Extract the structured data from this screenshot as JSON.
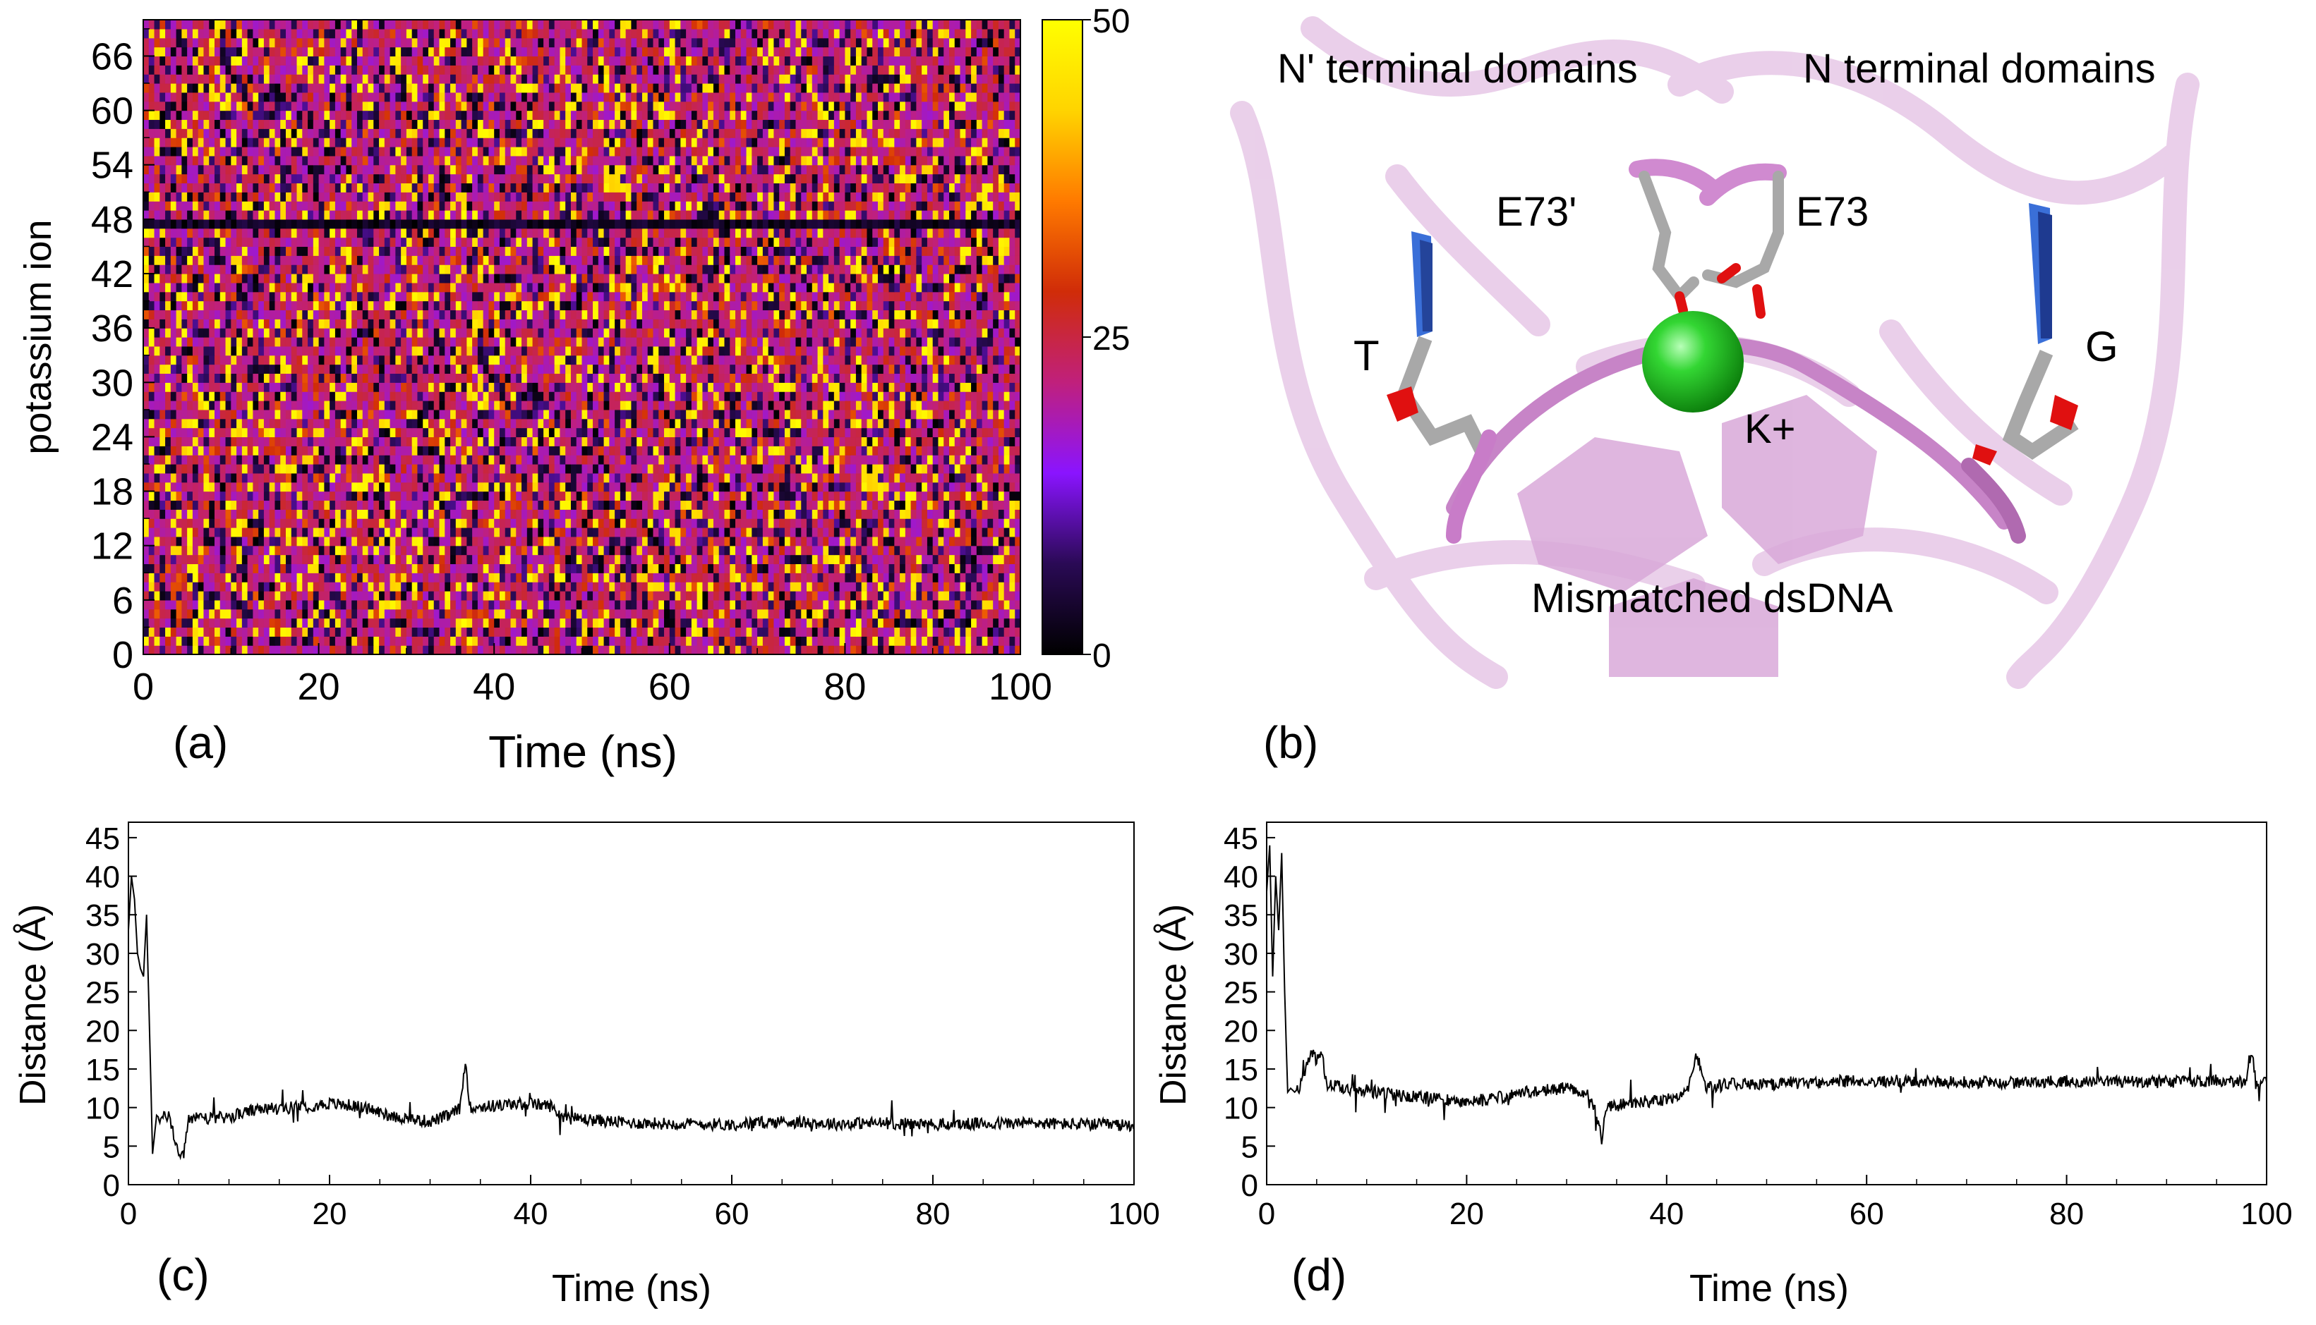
{
  "colors": {
    "scale": [
      "#000000",
      "#2a0a55",
      "#8a14ff",
      "#c0207c",
      "#d02c08",
      "#ff7a00",
      "#ffd400",
      "#ffff00"
    ],
    "line": "#000000",
    "protein": "#e8c9e8",
    "k_ion": "#22c522",
    "base_blue": "#2244aa",
    "oxygen": "#e01010",
    "carbon": "#9a9a9a"
  },
  "chart_data": [
    {
      "type": "heatmap",
      "panel": "(a)",
      "xlabel": "Time (ns)",
      "ylabel": "potassium ion",
      "xlim": [
        0,
        100
      ],
      "ylim": [
        0,
        70
      ],
      "xticks": [
        0,
        20,
        40,
        60,
        80,
        100
      ],
      "yticks": [
        0,
        6,
        12,
        18,
        24,
        30,
        36,
        42,
        48,
        54,
        60,
        66
      ],
      "colorbar": {
        "range": [
          0,
          50
        ],
        "ticks": [
          0,
          25,
          50
        ]
      },
      "rows": 70,
      "time_bins": 160,
      "dark_band_row": 47,
      "value_mix": {
        "purple": 0.55,
        "yellow": 0.14,
        "red": 0.1,
        "dark": 0.21
      }
    },
    {
      "type": "line",
      "panel": "(c)",
      "xlabel": "Time (ns)",
      "ylabel": "Distance (Å)",
      "xlim": [
        0,
        100
      ],
      "ylim": [
        0,
        47
      ],
      "xticks": [
        0,
        20,
        40,
        60,
        80,
        100
      ],
      "yticks": [
        0,
        5,
        10,
        15,
        20,
        25,
        30,
        35,
        40,
        45
      ],
      "series": [
        {
          "name": "distance",
          "x": [
            0,
            0.3,
            0.6,
            0.9,
            1.2,
            1.5,
            1.8,
            2.1,
            2.4,
            2.8,
            3.2,
            4,
            5,
            5.5,
            6,
            7,
            8,
            10,
            12,
            14,
            16,
            18,
            20,
            22,
            24,
            26,
            28,
            30,
            32,
            33,
            33.5,
            34,
            36,
            38,
            40,
            42,
            43,
            44,
            46,
            48,
            50,
            55,
            60,
            65,
            70,
            75,
            80,
            85,
            90,
            95,
            99,
            100
          ],
          "y": [
            33,
            40,
            37,
            30,
            28,
            27,
            35,
            20,
            4,
            9,
            8.5,
            9,
            4,
            3.8,
            8.5,
            9,
            8.5,
            8.8,
            9.5,
            9.8,
            10,
            10.2,
            10.5,
            10.3,
            9.8,
            9,
            8.5,
            8.2,
            9,
            10,
            16,
            10,
            10.2,
            10.4,
            10.5,
            10.2,
            9,
            8.6,
            8.4,
            8.2,
            8,
            7.9,
            7.8,
            8.2,
            7.9,
            8,
            7.8,
            7.9,
            8,
            7.8,
            7.7,
            7.8
          ]
        }
      ]
    },
    {
      "type": "line",
      "panel": "(d)",
      "xlabel": "Time (ns)",
      "ylabel": "Distance (Å)",
      "xlim": [
        0,
        100
      ],
      "ylim": [
        0,
        47
      ],
      "xticks": [
        0,
        20,
        40,
        60,
        80,
        100
      ],
      "yticks": [
        0,
        5,
        10,
        15,
        20,
        25,
        30,
        35,
        40,
        45
      ],
      "series": [
        {
          "name": "distance",
          "x": [
            0,
            0.3,
            0.6,
            0.9,
            1.2,
            1.5,
            1.8,
            2.1,
            2.4,
            2.8,
            3.5,
            4.5,
            5,
            5.5,
            6,
            8,
            10,
            12,
            14,
            16,
            18,
            20,
            22,
            24,
            26,
            28,
            30,
            32,
            33,
            33.5,
            34,
            36,
            38,
            40,
            42,
            43,
            44,
            46,
            48,
            50,
            55,
            60,
            65,
            70,
            75,
            80,
            85,
            90,
            95,
            98,
            98.5,
            99,
            100
          ],
          "y": [
            38,
            44,
            27,
            40,
            33,
            43,
            25,
            12,
            12.5,
            12,
            13,
            17.5,
            16,
            17,
            13,
            12.5,
            12.2,
            11.8,
            11.5,
            11.2,
            11,
            10.8,
            11,
            11.5,
            12,
            12.3,
            12.5,
            12,
            9,
            6,
            10,
            10.5,
            10.8,
            11,
            12,
            17,
            12.5,
            13,
            13.2,
            13,
            13.3,
            13.5,
            13.4,
            13.3,
            13.2,
            13.5,
            13.4,
            13.3,
            13.5,
            13.4,
            17.5,
            13.2,
            13.3
          ]
        }
      ]
    }
  ],
  "panel_b": {
    "label": "(b)",
    "labels": {
      "n_prime": "N' terminal domains",
      "n": "N terminal domains",
      "e73_prime": "E73'",
      "e73": "E73",
      "t": "T",
      "g": "G",
      "k": "K+",
      "dna": "Mismatched dsDNA"
    }
  }
}
